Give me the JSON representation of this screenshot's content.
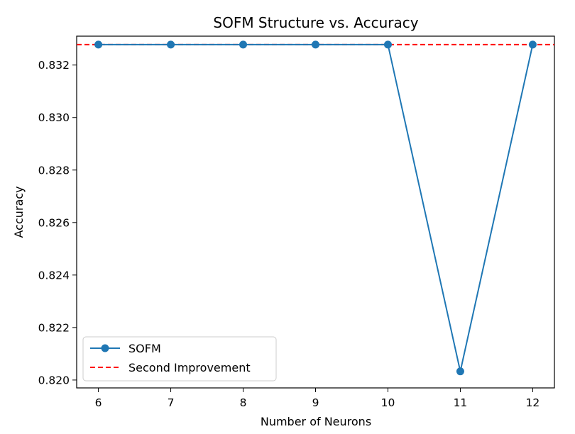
{
  "chart_data": {
    "type": "line",
    "title": "SOFM Structure vs. Accuracy",
    "xlabel": "Number of Neurons",
    "ylabel": "Accuracy",
    "x": [
      6,
      7,
      8,
      9,
      10,
      11,
      12
    ],
    "xlim": [
      5.7,
      12.3
    ],
    "ylim": [
      0.8197,
      0.8331
    ],
    "xticks": [
      "6",
      "7",
      "8",
      "9",
      "10",
      "11",
      "12"
    ],
    "yticks": [
      "0.820",
      "0.822",
      "0.824",
      "0.826",
      "0.828",
      "0.830",
      "0.832"
    ],
    "series": [
      {
        "name": "SOFM",
        "values": [
          0.83278,
          0.83278,
          0.83278,
          0.83278,
          0.83278,
          0.82033,
          0.83278
        ],
        "color": "#1f77b4",
        "marker": "circle",
        "line_style": "solid"
      }
    ],
    "reference_lines": [
      {
        "name": "Second Improvement",
        "y": 0.83278,
        "color": "#ff0000",
        "line_style": "dashed"
      }
    ],
    "grid": false,
    "legend_position": "lower-left"
  }
}
